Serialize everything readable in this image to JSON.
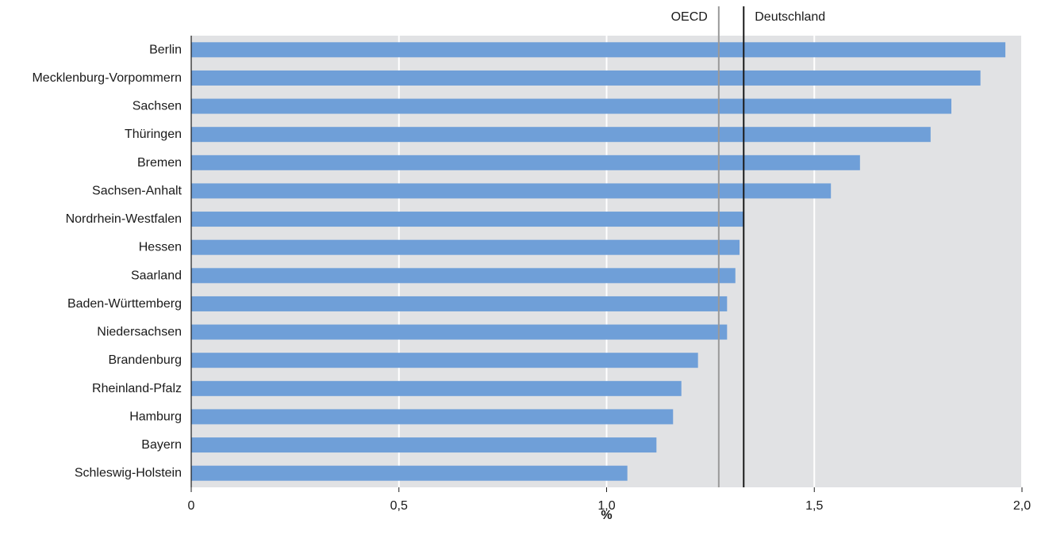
{
  "chart_data": {
    "type": "bar",
    "orientation": "horizontal",
    "categories": [
      "Berlin",
      "Mecklenburg-Vorpommern",
      "Sachsen",
      "Thüringen",
      "Bremen",
      "Sachsen-Anhalt",
      "Nordrhein-Westfalen",
      "Hessen",
      "Saarland",
      "Baden-Württemberg",
      "Niedersachsen",
      "Brandenburg",
      "Rheinland-Pfalz",
      "Hamburg",
      "Bayern",
      "Schleswig-Holstein"
    ],
    "values": [
      1.96,
      1.9,
      1.83,
      1.78,
      1.61,
      1.54,
      1.33,
      1.32,
      1.31,
      1.29,
      1.29,
      1.22,
      1.18,
      1.16,
      1.12,
      1.05
    ],
    "xlabel": "%",
    "xlim": [
      0,
      2.0
    ],
    "xticks": [
      0,
      0.5,
      1.0,
      1.5,
      2.0
    ],
    "xtick_labels": [
      "0",
      "0,5",
      "1,0",
      "1,5",
      "2,0"
    ],
    "grid": true,
    "reference_lines": [
      {
        "label": "OECD",
        "value": 1.27,
        "color": "#9a9a9a"
      },
      {
        "label": "Deutschland",
        "value": 1.33,
        "color": "#1a1a1a"
      }
    ],
    "bar_color": "#6f9fd8",
    "plot_background": "#e1e2e4"
  }
}
